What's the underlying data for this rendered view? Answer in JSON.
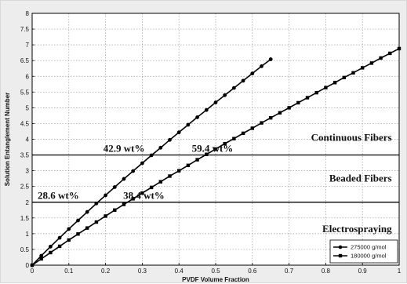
{
  "chart_data": {
    "type": "line",
    "xlabel": "PVDF Volume Fraction",
    "ylabel": "Solution Entanglement Number",
    "xlim": [
      0,
      1
    ],
    "ylim": [
      0,
      8
    ],
    "xticks": [
      "0",
      "0.1",
      "0.2",
      "0.3",
      "0.4",
      "0.5",
      "0.6",
      "0.7",
      "0.8",
      "0.9",
      "1"
    ],
    "yticks": [
      "0",
      "0.5",
      "1",
      "1.5",
      "2",
      "2.5",
      "3",
      "3.5",
      "4",
      "4.5",
      "5",
      "5.5",
      "6",
      "6.5",
      "7",
      "7.5",
      "8"
    ],
    "grid": true,
    "legend_position": "bottom-right",
    "series": [
      {
        "name": "275000 g/mol",
        "marker": "circle",
        "x": [
          0,
          0.025,
          0.05,
          0.075,
          0.1,
          0.125,
          0.15,
          0.175,
          0.2,
          0.225,
          0.25,
          0.275,
          0.3,
          0.325,
          0.35,
          0.375,
          0.4,
          0.425,
          0.45,
          0.475,
          0.5,
          0.525,
          0.55,
          0.575,
          0.6,
          0.625,
          0.65
        ],
        "y": [
          0,
          0.3,
          0.59,
          0.87,
          1.15,
          1.42,
          1.69,
          1.96,
          2.22,
          2.48,
          2.74,
          2.99,
          3.24,
          3.49,
          3.73,
          3.98,
          4.22,
          4.46,
          4.7,
          4.93,
          5.17,
          5.4,
          5.63,
          5.86,
          6.09,
          6.32,
          6.54
        ]
      },
      {
        "name": "180000 g/mol",
        "marker": "square",
        "x": [
          0,
          0.025,
          0.05,
          0.075,
          0.1,
          0.125,
          0.15,
          0.175,
          0.2,
          0.225,
          0.25,
          0.275,
          0.3,
          0.325,
          0.35,
          0.375,
          0.4,
          0.425,
          0.45,
          0.475,
          0.5,
          0.525,
          0.55,
          0.575,
          0.6,
          0.625,
          0.65,
          0.675,
          0.7,
          0.725,
          0.75,
          0.775,
          0.8,
          0.825,
          0.85,
          0.875,
          0.9,
          0.925,
          0.95,
          0.975,
          1.0
        ],
        "y": [
          0,
          0.2,
          0.4,
          0.6,
          0.8,
          0.99,
          1.18,
          1.37,
          1.56,
          1.75,
          1.93,
          2.11,
          2.29,
          2.47,
          2.65,
          2.83,
          3.0,
          3.17,
          3.35,
          3.52,
          3.69,
          3.86,
          4.02,
          4.19,
          4.35,
          4.52,
          4.68,
          4.84,
          5.0,
          5.16,
          5.32,
          5.48,
          5.64,
          5.8,
          5.96,
          6.11,
          6.27,
          6.42,
          6.58,
          6.73,
          6.88
        ]
      }
    ],
    "horizontal_lines": [
      2,
      3.5
    ],
    "region_labels": [
      {
        "text": "Continuous Fibers",
        "x": 0.98,
        "y": 3.95
      },
      {
        "text": "Beaded Fibers",
        "x": 0.98,
        "y": 2.65
      },
      {
        "text": "Electrospraying",
        "x": 0.98,
        "y": 1.05
      }
    ],
    "annotations": [
      {
        "text": "42.9 wt%",
        "x": 0.194,
        "y": 3.6
      },
      {
        "text": "59.4 wt%",
        "x": 0.435,
        "y": 3.6
      },
      {
        "text": "28.6 wt%",
        "x": 0.015,
        "y": 2.1
      },
      {
        "text": "38.4 wt%",
        "x": 0.248,
        "y": 2.1
      }
    ]
  }
}
